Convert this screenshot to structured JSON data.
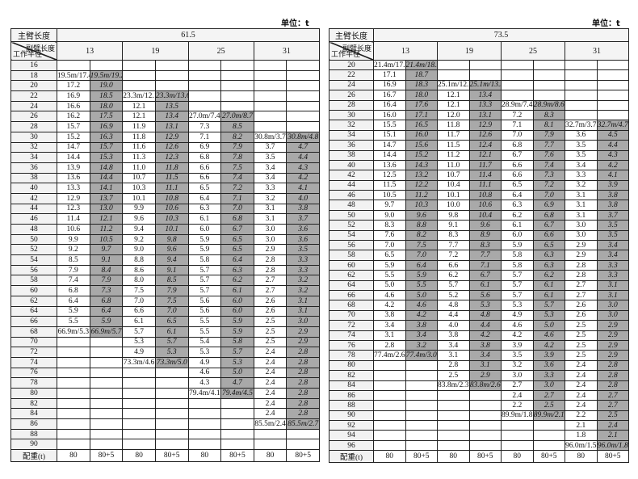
{
  "unit_label": "单位：t",
  "header_labels": {
    "main_boom": "主臂长度",
    "jib": "副臂长度",
    "radius": "工作半径",
    "counterweight": "配重(t)"
  },
  "jib_lengths": [
    "13",
    "19",
    "25",
    "31"
  ],
  "tables": [
    {
      "main_boom_length": "61.5",
      "counterweights": [
        "80",
        "80+5",
        "80",
        "80+5",
        "80",
        "80+5",
        "80",
        "80+5"
      ],
      "rows": [
        [
          "16",
          "",
          "",
          "",
          "",
          "",
          "",
          "",
          ""
        ],
        [
          "18",
          "19.5m/17.4",
          "19.5m/19.2",
          "",
          "",
          "",
          "",
          "",
          ""
        ],
        [
          "20",
          "17.2",
          "19.0",
          "",
          "",
          "",
          "",
          "",
          ""
        ],
        [
          "22",
          "16.9",
          "18.5",
          "23.3m/12.1",
          "23.3m/13.6",
          "",
          "",
          "",
          ""
        ],
        [
          "24",
          "16.6",
          "18.0",
          "12.1",
          "13.5",
          "",
          "",
          "",
          ""
        ],
        [
          "26",
          "16.2",
          "17.5",
          "12.1",
          "13.4",
          "27.0m/7.4",
          "27.0m/8.7",
          "",
          ""
        ],
        [
          "28",
          "15.7",
          "16.9",
          "11.9",
          "13.1",
          "7.3",
          "8.5",
          "",
          ""
        ],
        [
          "30",
          "15.2",
          "16.3",
          "11.8",
          "12.9",
          "7.1",
          "8.2",
          "30.8m/3.7",
          "30.8m/4.8"
        ],
        [
          "32",
          "14.7",
          "15.7",
          "11.6",
          "12.6",
          "6.9",
          "7.9",
          "3.7",
          "4.7"
        ],
        [
          "34",
          "14.4",
          "15.3",
          "11.3",
          "12.3",
          "6.8",
          "7.8",
          "3.5",
          "4.4"
        ],
        [
          "36",
          "13.9",
          "14.8",
          "11.0",
          "11.8",
          "6.6",
          "7.5",
          "3.4",
          "4.3"
        ],
        [
          "38",
          "13.6",
          "14.4",
          "10.7",
          "11.5",
          "6.6",
          "7.4",
          "3.4",
          "4.2"
        ],
        [
          "40",
          "13.3",
          "14.1",
          "10.3",
          "11.1",
          "6.5",
          "7.2",
          "3.3",
          "4.1"
        ],
        [
          "42",
          "12.9",
          "13.7",
          "10.1",
          "10.8",
          "6.4",
          "7.1",
          "3.2",
          "4.0"
        ],
        [
          "44",
          "12.3",
          "13.0",
          "9.9",
          "10.6",
          "6.3",
          "7.0",
          "3.1",
          "3.8"
        ],
        [
          "46",
          "11.4",
          "12.1",
          "9.6",
          "10.3",
          "6.1",
          "6.8",
          "3.1",
          "3.7"
        ],
        [
          "48",
          "10.6",
          "11.2",
          "9.4",
          "10.1",
          "6.0",
          "6.7",
          "3.0",
          "3.6"
        ],
        [
          "50",
          "9.9",
          "10.5",
          "9.2",
          "9.8",
          "5.9",
          "6.5",
          "3.0",
          "3.6"
        ],
        [
          "52",
          "9.2",
          "9.7",
          "9.0",
          "9.6",
          "5.9",
          "6.5",
          "2.9",
          "3.5"
        ],
        [
          "54",
          "8.5",
          "9.1",
          "8.8",
          "9.4",
          "5.8",
          "6.4",
          "2.8",
          "3.3"
        ],
        [
          "56",
          "7.9",
          "8.4",
          "8.6",
          "9.1",
          "5.7",
          "6.3",
          "2.8",
          "3.3"
        ],
        [
          "58",
          "7.4",
          "7.9",
          "8.0",
          "8.5",
          "5.7",
          "6.2",
          "2.7",
          "3.2"
        ],
        [
          "60",
          "6.8",
          "7.3",
          "7.5",
          "7.9",
          "5.7",
          "6.1",
          "2.7",
          "3.2"
        ],
        [
          "62",
          "6.4",
          "6.8",
          "7.0",
          "7.5",
          "5.6",
          "6.0",
          "2.6",
          "3.1"
        ],
        [
          "64",
          "5.9",
          "6.4",
          "6.6",
          "7.0",
          "5.6",
          "6.0",
          "2.6",
          "3.1"
        ],
        [
          "66",
          "5.5",
          "5.9",
          "6.1",
          "6.5",
          "5.5",
          "5.9",
          "2.5",
          "3.0"
        ],
        [
          "68",
          "66.9m/5.3",
          "66.9m/5.7",
          "5.7",
          "6.1",
          "5.5",
          "5.9",
          "2.5",
          "2.9"
        ],
        [
          "70",
          "",
          "",
          "5.3",
          "5.7",
          "5.4",
          "5.8",
          "2.5",
          "2.9"
        ],
        [
          "72",
          "",
          "",
          "4.9",
          "5.3",
          "5.3",
          "5.7",
          "2.4",
          "2.8"
        ],
        [
          "74",
          "",
          "",
          "73.3m/4.6",
          "73.3m/5.0",
          "4.9",
          "5.3",
          "2.4",
          "2.8"
        ],
        [
          "76",
          "",
          "",
          "",
          "",
          "4.6",
          "5.0",
          "2.4",
          "2.8"
        ],
        [
          "78",
          "",
          "",
          "",
          "",
          "4.3",
          "4.7",
          "2.4",
          "2.8"
        ],
        [
          "80",
          "",
          "",
          "",
          "",
          "79.4m/4.1",
          "79.4m/4.5",
          "2.4",
          "2.8"
        ],
        [
          "82",
          "",
          "",
          "",
          "",
          "",
          "",
          "2.4",
          "2.8"
        ],
        [
          "84",
          "",
          "",
          "",
          "",
          "",
          "",
          "2.4",
          "2.8"
        ],
        [
          "86",
          "",
          "",
          "",
          "",
          "",
          "",
          "85.5m/2.4",
          "85.5m/2.7"
        ],
        [
          "88",
          "",
          "",
          "",
          "",
          "",
          "",
          "",
          ""
        ],
        [
          "90",
          "",
          "",
          "",
          "",
          "",
          "",
          "",
          ""
        ]
      ]
    },
    {
      "main_boom_length": "73.5",
      "counterweights": [
        "80",
        "80+5",
        "80",
        "80+5",
        "80",
        "80+5",
        "80",
        "80+5"
      ],
      "rows": [
        [
          "20",
          "21.4m/17.3",
          "21.4m/18.9",
          "",
          "",
          "",
          "",
          "",
          ""
        ],
        [
          "22",
          "17.1",
          "18.7",
          "",
          "",
          "",
          "",
          "",
          ""
        ],
        [
          "24",
          "16.9",
          "18.3",
          "25.1m/12.1",
          "25.1m/13.5",
          "",
          "",
          "",
          ""
        ],
        [
          "26",
          "16.7",
          "18.0",
          "12.1",
          "13.4",
          "",
          "",
          "",
          ""
        ],
        [
          "28",
          "16.4",
          "17.6",
          "12.1",
          "13.3",
          "28.9m/7.4",
          "28.9m/8.6",
          "",
          ""
        ],
        [
          "30",
          "16.0",
          "17.1",
          "12.0",
          "13.1",
          "7.2",
          "8.3",
          "",
          ""
        ],
        [
          "32",
          "15.5",
          "16.5",
          "11.8",
          "12.9",
          "7.1",
          "8.1",
          "32.7m/3.7",
          "32.7m/4.7"
        ],
        [
          "34",
          "15.1",
          "16.0",
          "11.7",
          "12.6",
          "7.0",
          "7.9",
          "3.6",
          "4.5"
        ],
        [
          "36",
          "14.7",
          "15.6",
          "11.5",
          "12.4",
          "6.8",
          "7.7",
          "3.5",
          "4.4"
        ],
        [
          "38",
          "14.4",
          "15.2",
          "11.2",
          "12.1",
          "6.7",
          "7.6",
          "3.5",
          "4.3"
        ],
        [
          "40",
          "13.6",
          "14.3",
          "11.0",
          "11.7",
          "6.6",
          "7.4",
          "3.4",
          "4.2"
        ],
        [
          "42",
          "12.5",
          "13.2",
          "10.7",
          "11.4",
          "6.6",
          "7.3",
          "3.3",
          "4.1"
        ],
        [
          "44",
          "11.5",
          "12.2",
          "10.4",
          "11.1",
          "6.5",
          "7.2",
          "3.2",
          "3.9"
        ],
        [
          "46",
          "10.5",
          "11.2",
          "10.1",
          "10.8",
          "6.4",
          "7.0",
          "3.1",
          "3.8"
        ],
        [
          "48",
          "9.7",
          "10.3",
          "10.0",
          "10.6",
          "6.3",
          "6.9",
          "3.1",
          "3.8"
        ],
        [
          "50",
          "9.0",
          "9.6",
          "9.8",
          "10.4",
          "6.2",
          "6.8",
          "3.1",
          "3.7"
        ],
        [
          "52",
          "8.3",
          "8.8",
          "9.1",
          "9.6",
          "6.1",
          "6.7",
          "3.0",
          "3.5"
        ],
        [
          "54",
          "7.6",
          "8.2",
          "8.3",
          "8.9",
          "6.0",
          "6.6",
          "3.0",
          "3.5"
        ],
        [
          "56",
          "7.0",
          "7.5",
          "7.7",
          "8.3",
          "5.9",
          "6.5",
          "2.9",
          "3.4"
        ],
        [
          "58",
          "6.5",
          "7.0",
          "7.2",
          "7.7",
          "5.8",
          "6.3",
          "2.9",
          "3.4"
        ],
        [
          "60",
          "5.9",
          "6.4",
          "6.6",
          "7.1",
          "5.8",
          "6.3",
          "2.8",
          "3.3"
        ],
        [
          "62",
          "5.5",
          "5.9",
          "6.2",
          "6.7",
          "5.7",
          "6.2",
          "2.8",
          "3.3"
        ],
        [
          "64",
          "5.0",
          "5.5",
          "5.7",
          "6.1",
          "5.7",
          "6.1",
          "2.7",
          "3.1"
        ],
        [
          "66",
          "4.6",
          "5.0",
          "5.2",
          "5.6",
          "5.7",
          "6.1",
          "2.7",
          "3.1"
        ],
        [
          "68",
          "4.2",
          "4.6",
          "4.8",
          "5.3",
          "5.3",
          "5.7",
          "2.6",
          "3.0"
        ],
        [
          "70",
          "3.8",
          "4.2",
          "4.4",
          "4.8",
          "4.9",
          "5.3",
          "2.6",
          "3.0"
        ],
        [
          "72",
          "3.4",
          "3.8",
          "4.0",
          "4.4",
          "4.6",
          "5.0",
          "2.5",
          "2.9"
        ],
        [
          "74",
          "3.1",
          "3.4",
          "3.8",
          "4.2",
          "4.2",
          "4.6",
          "2.5",
          "2.9"
        ],
        [
          "76",
          "2.8",
          "3.2",
          "3.4",
          "3.8",
          "3.9",
          "4.2",
          "2.5",
          "2.9"
        ],
        [
          "78",
          "77.4m/2.6",
          "77.4m/3.0",
          "3.1",
          "3.4",
          "3.5",
          "3.9",
          "2.5",
          "2.9"
        ],
        [
          "80",
          "",
          "",
          "2.8",
          "3.1",
          "3.2",
          "3.6",
          "2.4",
          "2.8"
        ],
        [
          "82",
          "",
          "",
          "2.5",
          "2.9",
          "3.0",
          "3.3",
          "2.4",
          "2.8"
        ],
        [
          "84",
          "",
          "",
          "83.8m/2.3",
          "83.8m/2.6",
          "2.7",
          "3.0",
          "2.4",
          "2.8"
        ],
        [
          "86",
          "",
          "",
          "",
          "",
          "2.4",
          "2.7",
          "2.4",
          "2.7"
        ],
        [
          "88",
          "",
          "",
          "",
          "",
          "2.2",
          "2.5",
          "2.4",
          "2.7"
        ],
        [
          "90",
          "",
          "",
          "",
          "",
          "89.9m/1.8",
          "89.9m/2.1",
          "2.2",
          "2.5"
        ],
        [
          "92",
          "",
          "",
          "",
          "",
          "",
          "",
          "2.1",
          "2.4"
        ],
        [
          "94",
          "",
          "",
          "",
          "",
          "",
          "",
          "1.8",
          "2.1"
        ],
        [
          "96",
          "",
          "",
          "",
          "",
          "",
          "",
          "96.0m/1.5",
          "96.0m/1.8"
        ]
      ]
    }
  ],
  "colors": {
    "shaded_cell": "#a9a9a9",
    "radius_cell": "#f2f2f2",
    "border": "#222222"
  }
}
